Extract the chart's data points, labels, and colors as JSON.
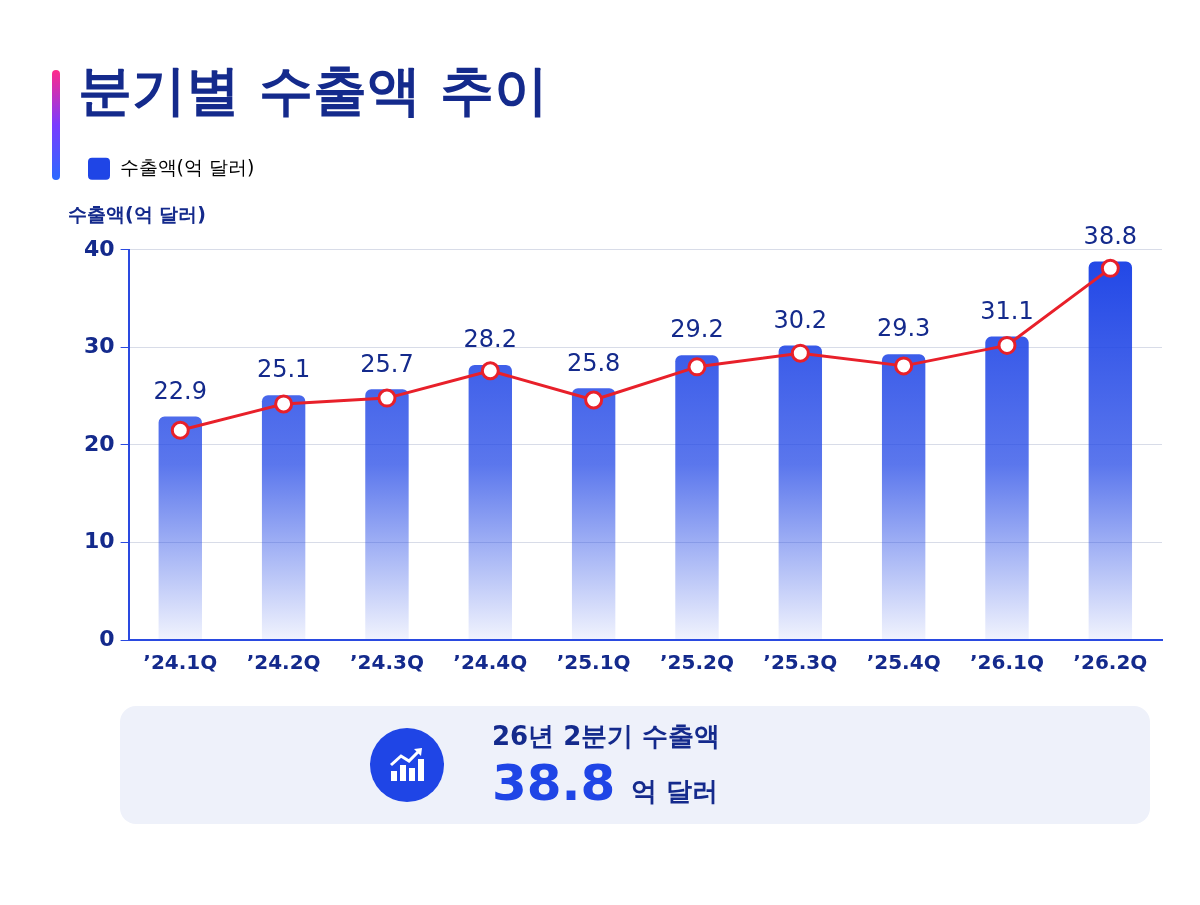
{
  "chart_data": {
    "type": "bar",
    "title": "분기별 수출액 추이",
    "ylabel": "수출액(억 달러)",
    "categories": [
      "’24.1Q",
      "’24.2Q",
      "’24.3Q",
      "’24.4Q",
      "’25.1Q",
      "’25.2Q",
      "’25.3Q",
      "’25.4Q",
      "’26.1Q",
      "’26.2Q"
    ],
    "series": [
      {
        "name": "수출액(억 달러)",
        "color": "#1f45e6",
        "values": [
          22.9,
          25.1,
          25.7,
          28.2,
          25.8,
          29.2,
          30.2,
          29.3,
          31.1,
          38.8
        ],
        "value_labels": [
          "22.9",
          "25.1",
          "25.7",
          "28.2",
          "25.8",
          "29.2",
          "30.2",
          "29.3",
          "31.1",
          "38.8"
        ]
      },
      {
        "type": "line",
        "color": "#e8202a",
        "values": [
          21.5,
          24.2,
          24.8,
          27.6,
          24.6,
          28.0,
          29.4,
          28.1,
          30.2,
          38.1
        ]
      }
    ],
    "marker": "circle",
    "line_style": "solid",
    "ylim": [
      0,
      40
    ],
    "yticks": [
      0,
      10,
      20,
      30,
      40
    ],
    "grid": "y",
    "legend": "top left",
    "annotations": [
      "26년 2분기 수출액",
      "38.8",
      "억 달러"
    ]
  }
}
